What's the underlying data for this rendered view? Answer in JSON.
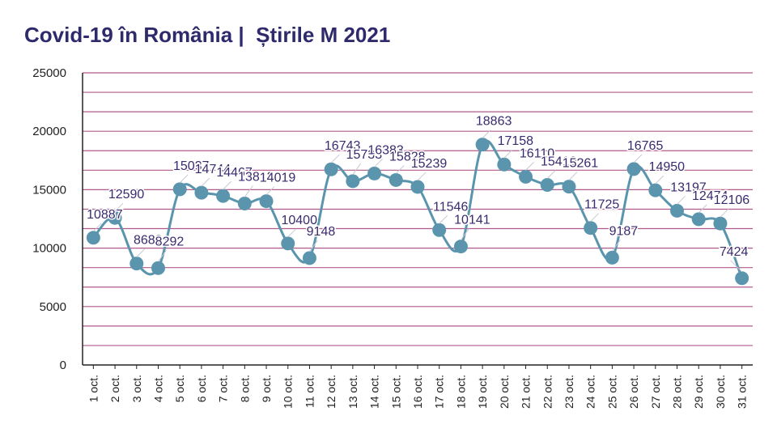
{
  "title": "Covid-19 în România |  Știrile M 2021",
  "chart_data": {
    "type": "line",
    "title": "Covid-19 în România |  Știrile M 2021",
    "xlabel": "",
    "ylabel": "",
    "ylim": [
      0,
      25000
    ],
    "yticks": [
      0,
      5000,
      10000,
      15000,
      20000,
      25000
    ],
    "grid": true,
    "line_color": "#5a95ad",
    "grid_color": "#b05a8a",
    "label_color": "#3a2a6e",
    "categories": [
      "1 oct.",
      "2 oct.",
      "3 oct.",
      "4 oct.",
      "5 oct.",
      "6 oct.",
      "7 oct.",
      "8 oct.",
      "9 oct.",
      "10 oct.",
      "11 oct.",
      "12 oct.",
      "13 oct.",
      "14 oct.",
      "15 oct.",
      "16 oct.",
      "17 oct.",
      "18 oct.",
      "19 oct.",
      "20 oct.",
      "21 oct.",
      "22 oct.",
      "23 oct.",
      "24 oct.",
      "25 oct.",
      "26 oct.",
      "27 oct.",
      "28 oct.",
      "29 oct.",
      "30 oct.",
      "31 oct."
    ],
    "values": [
      10887,
      12590,
      8683,
      8292,
      15037,
      14744,
      14467,
      13813,
      14019,
      10400,
      9148,
      16743,
      15733,
      16383,
      15828,
      15239,
      11546,
      10141,
      18863,
      17158,
      16110,
      15410,
      15261,
      11725,
      9187,
      16765,
      14950,
      13197,
      12474,
      12106,
      7424
    ]
  }
}
